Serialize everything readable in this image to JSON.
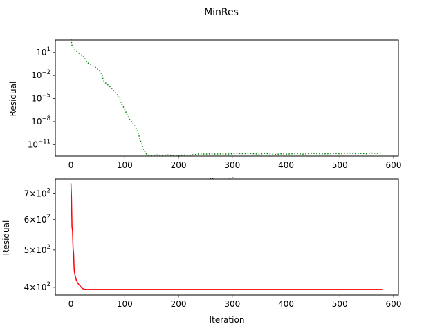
{
  "figure": {
    "title": "MinRes"
  },
  "chart_data": [
    {
      "type": "line",
      "title": "",
      "xlabel": "Iteration",
      "ylabel": "Residual",
      "xlim": [
        -29,
        609
      ],
      "ylim_log10": [
        -12.5,
        2.6
      ],
      "yscale": "log",
      "xticks": [
        0,
        100,
        200,
        300,
        400,
        500,
        600
      ],
      "yticks": [
        {
          "base": "10",
          "exp": "1",
          "log10": 1
        },
        {
          "base": "10",
          "exp": "−2",
          "log10": -2
        },
        {
          "base": "10",
          "exp": "−5",
          "log10": -5
        },
        {
          "base": "10",
          "exp": "−8",
          "log10": -8
        },
        {
          "base": "10",
          "exp": "−11",
          "log10": -11
        }
      ],
      "grid": false,
      "series": [
        {
          "color": "#008000",
          "linestyle": "dotted",
          "x": [
            0,
            2,
            5,
            10,
            15,
            20,
            25,
            30,
            35,
            40,
            45,
            50,
            55,
            58,
            60,
            65,
            70,
            75,
            80,
            85,
            90,
            95,
            100,
            105,
            110,
            115,
            120,
            125,
            130,
            135,
            140,
            145,
            150,
            160,
            170,
            180,
            190,
            200,
            210,
            220,
            230,
            240,
            250,
            260,
            270,
            280,
            290,
            300,
            310,
            320,
            330,
            340,
            350,
            360,
            370,
            380,
            390,
            400,
            410,
            420,
            430,
            440,
            450,
            460,
            470,
            480,
            490,
            500,
            510,
            520,
            530,
            540,
            550,
            560,
            570,
            579
          ],
          "log10_y": [
            2.7,
            1.9,
            1.4,
            1.2,
            0.9,
            0.6,
            0.3,
            -0.3,
            -0.5,
            -0.7,
            -0.9,
            -1.2,
            -1.5,
            -2.0,
            -2.6,
            -3.0,
            -3.3,
            -3.6,
            -4.0,
            -4.4,
            -4.9,
            -5.8,
            -6.4,
            -7.2,
            -7.8,
            -8.2,
            -8.7,
            -9.5,
            -10.6,
            -11.6,
            -12.2,
            -12.4,
            -12.4,
            -12.35,
            -12.4,
            -12.35,
            -12.4,
            -12.4,
            -12.35,
            -12.4,
            -12.3,
            -12.2,
            -12.25,
            -12.2,
            -12.25,
            -12.2,
            -12.25,
            -12.2,
            -12.15,
            -12.2,
            -12.15,
            -12.2,
            -12.25,
            -12.15,
            -12.2,
            -12.3,
            -12.2,
            -12.25,
            -12.2,
            -12.15,
            -12.25,
            -12.2,
            -12.15,
            -12.2,
            -12.2,
            -12.2,
            -12.15,
            -12.2,
            -12.15,
            -12.1,
            -12.2,
            -12.15,
            -12.2,
            -12.1,
            -12.15,
            -12.05
          ]
        }
      ]
    },
    {
      "type": "line",
      "title": "",
      "xlabel": "Iteration",
      "ylabel": "Residual",
      "xlim": [
        -29,
        609
      ],
      "ylim": [
        382,
        765
      ],
      "yscale": "log",
      "xticks": [
        0,
        100,
        200,
        300,
        400,
        500,
        600
      ],
      "yticks": [
        {
          "base": "4×10",
          "exp": "2",
          "value": 400
        },
        {
          "base": "5×10",
          "exp": "2",
          "value": 500
        },
        {
          "base": "6×10",
          "exp": "2",
          "value": 600
        },
        {
          "base": "7×10",
          "exp": "2",
          "value": 700
        }
      ],
      "grid": false,
      "series": [
        {
          "color": "#ff0000",
          "linestyle": "solid",
          "x": [
            0,
            1,
            2,
            3,
            4,
            5,
            6,
            7,
            8,
            10,
            12,
            14,
            16,
            18,
            20,
            22,
            25,
            30,
            40,
            60,
            100,
            200,
            300,
            400,
            500,
            579
          ],
          "y": [
            745,
            690,
            575,
            560,
            505,
            490,
            445,
            435,
            428,
            418,
            412,
            408,
            405,
            402,
            399,
            397,
            395.5,
            395,
            395,
            395,
            395,
            395,
            395,
            395,
            395,
            395
          ]
        }
      ]
    }
  ]
}
